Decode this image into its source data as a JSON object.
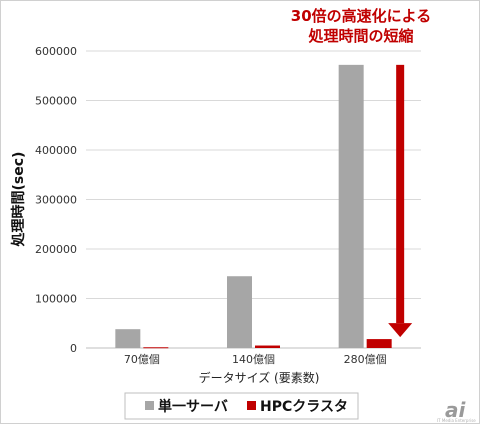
{
  "chart_data": {
    "type": "bar",
    "title": "",
    "xlabel": "データサイズ (要素数)",
    "ylabel": "処理時間(sec)",
    "categories": [
      "70億個",
      "140億個",
      "280億個"
    ],
    "series": [
      {
        "name": "単一サーバ",
        "values": [
          38000,
          145000,
          572000
        ],
        "color": "#a6a6a6"
      },
      {
        "name": "HPCクラスタ",
        "values": [
          1500,
          5000,
          18000
        ],
        "color": "#c00000"
      }
    ],
    "ylim": [
      0,
      600000
    ],
    "yticks": [
      "0",
      "100000",
      "200000",
      "300000",
      "400000",
      "500000",
      "600000"
    ],
    "grid": true,
    "legend_position": "bottom",
    "annotation": {
      "lines": [
        "30倍の高速化による",
        "処理時間の短縮"
      ],
      "color": "#c00000",
      "arrow_from_value": 572000,
      "arrow_to_value": 18000,
      "category": "280億個"
    }
  },
  "watermark": {
    "text": "ai",
    "subtext": "IT Media Enterprise"
  }
}
